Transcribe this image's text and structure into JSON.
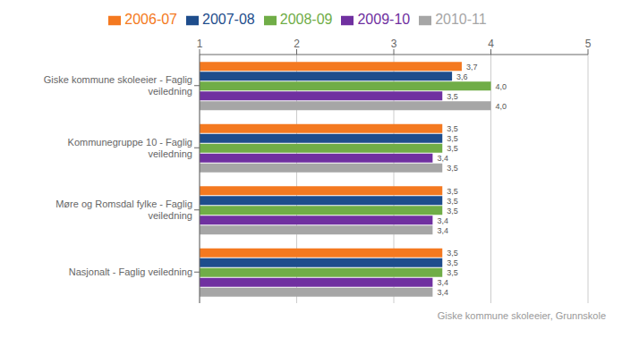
{
  "chart_data": {
    "type": "bar",
    "orientation": "horizontal",
    "subtitle": "Giske kommune skoleeier, Grunnskole",
    "categories": [
      "Giske kommune skoleeier - Faglig\nveiledning",
      "Kommunegruppe 10 - Faglig\nveiledning",
      "Møre og Romsdal fylke - Faglig\nveiledning",
      "Nasjonalt - Faglig veiledning"
    ],
    "series": [
      {
        "name": "2006-07",
        "color": "#f47920",
        "values": [
          3.7,
          3.5,
          3.5,
          3.5
        ],
        "value_labels": [
          "3,7",
          "3,5",
          "3,5",
          "3,5"
        ]
      },
      {
        "name": "2007-08",
        "color": "#1e4d8c",
        "values": [
          3.6,
          3.5,
          3.5,
          3.5
        ],
        "value_labels": [
          "3,6",
          "3,5",
          "3,5",
          "3,5"
        ]
      },
      {
        "name": "2008-09",
        "color": "#70ad47",
        "values": [
          4.0,
          3.5,
          3.5,
          3.5
        ],
        "value_labels": [
          "4,0",
          "3,5",
          "3,5",
          "3,5"
        ]
      },
      {
        "name": "2009-10",
        "color": "#7030a0",
        "values": [
          3.5,
          3.4,
          3.4,
          3.4
        ],
        "value_labels": [
          "3,5",
          "3,4",
          "3,4",
          "3,4"
        ]
      },
      {
        "name": "2010-11",
        "color": "#a6a6a6",
        "values": [
          4.0,
          3.5,
          3.4,
          3.4
        ],
        "value_labels": [
          "4,0",
          "3,5",
          "3,4",
          "3,4"
        ]
      }
    ],
    "xlim": [
      1,
      5
    ],
    "xticks": [
      1,
      2,
      3,
      4,
      5
    ],
    "grid": true,
    "data_labels": true,
    "legend": "top"
  }
}
